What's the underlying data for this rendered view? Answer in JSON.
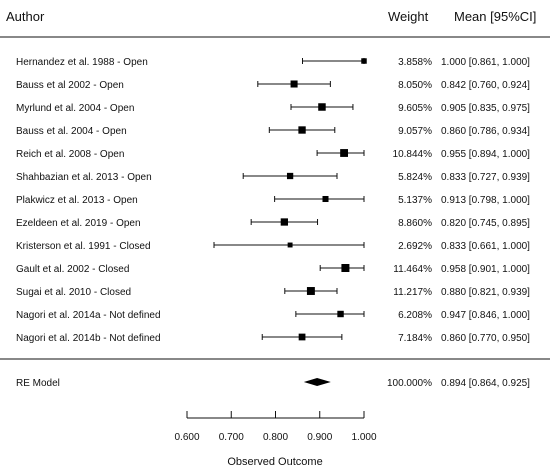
{
  "header": {
    "author": "Author",
    "weight": "Weight",
    "mean": "Mean [95%CI]"
  },
  "chart_data": {
    "type": "forest",
    "xlabel": "Observed Outcome",
    "xlim": [
      0.6,
      1.0
    ],
    "ticks": [
      {
        "value": 0.6,
        "label": "0.600"
      },
      {
        "value": 0.7,
        "label": "0.700"
      },
      {
        "value": 0.8,
        "label": "0.800"
      },
      {
        "value": 0.9,
        "label": "0.900"
      },
      {
        "value": 1.0,
        "label": "1.000"
      }
    ],
    "studies": [
      {
        "label": "Hernandez et al. 1988  -  Open",
        "weight": 3.858,
        "weight_text": "3.858%",
        "mean": 1.0,
        "lo": 0.861,
        "hi": 1.0,
        "ci_text": "1.000 [0.861, 1.000]"
      },
      {
        "label": "Bauss et al 2002  -  Open",
        "weight": 8.05,
        "weight_text": "8.050%",
        "mean": 0.842,
        "lo": 0.76,
        "hi": 0.924,
        "ci_text": "0.842 [0.760, 0.924]"
      },
      {
        "label": "Myrlund et al. 2004  -  Open",
        "weight": 9.605,
        "weight_text": "9.605%",
        "mean": 0.905,
        "lo": 0.835,
        "hi": 0.975,
        "ci_text": "0.905 [0.835, 0.975]"
      },
      {
        "label": "Bauss et al. 2004  -  Open",
        "weight": 9.057,
        "weight_text": "9.057%",
        "mean": 0.86,
        "lo": 0.786,
        "hi": 0.934,
        "ci_text": "0.860 [0.786, 0.934]"
      },
      {
        "label": "Reich et al. 2008  -  Open",
        "weight": 10.844,
        "weight_text": "10.844%",
        "mean": 0.955,
        "lo": 0.894,
        "hi": 1.0,
        "ci_text": "0.955 [0.894, 1.000]"
      },
      {
        "label": "Shahbazian et al. 2013  -  Open",
        "weight": 5.824,
        "weight_text": "5.824%",
        "mean": 0.833,
        "lo": 0.727,
        "hi": 0.939,
        "ci_text": "0.833 [0.727, 0.939]"
      },
      {
        "label": "Plakwicz et al. 2013  -  Open",
        "weight": 5.137,
        "weight_text": "5.137%",
        "mean": 0.913,
        "lo": 0.798,
        "hi": 1.0,
        "ci_text": "0.913 [0.798, 1.000]"
      },
      {
        "label": "Ezeldeen et al. 2019  -  Open",
        "weight": 8.86,
        "weight_text": "8.860%",
        "mean": 0.82,
        "lo": 0.745,
        "hi": 0.895,
        "ci_text": "0.820 [0.745, 0.895]"
      },
      {
        "label": "Kristerson  et al. 1991  - Closed",
        "weight": 2.692,
        "weight_text": "2.692%",
        "mean": 0.833,
        "lo": 0.661,
        "hi": 1.0,
        "ci_text": "0.833 [0.661, 1.000]"
      },
      {
        "label": "Gault et al. 2002  - Closed",
        "weight": 11.464,
        "weight_text": "11.464%",
        "mean": 0.958,
        "lo": 0.901,
        "hi": 1.0,
        "ci_text": "0.958 [0.901, 1.000]"
      },
      {
        "label": "Sugai et al. 2010  - Closed",
        "weight": 11.217,
        "weight_text": "11.217%",
        "mean": 0.88,
        "lo": 0.821,
        "hi": 0.939,
        "ci_text": "0.880 [0.821, 0.939]"
      },
      {
        "label": "Nagori et al. 2014a  -  Not defined",
        "weight": 6.208,
        "weight_text": "6.208%",
        "mean": 0.947,
        "lo": 0.846,
        "hi": 1.0,
        "ci_text": "0.947 [0.846, 1.000]"
      },
      {
        "label": "Nagori et al. 2014b  -  Not defined",
        "weight": 7.184,
        "weight_text": "7.184%",
        "mean": 0.86,
        "lo": 0.77,
        "hi": 0.95,
        "ci_text": "0.860 [0.770, 0.950]"
      }
    ],
    "summary": {
      "label": "RE Model",
      "weight_text": "100.000%",
      "mean": 0.894,
      "lo": 0.864,
      "hi": 0.925,
      "ci_text": "0.894 [0.864, 0.925]"
    }
  }
}
